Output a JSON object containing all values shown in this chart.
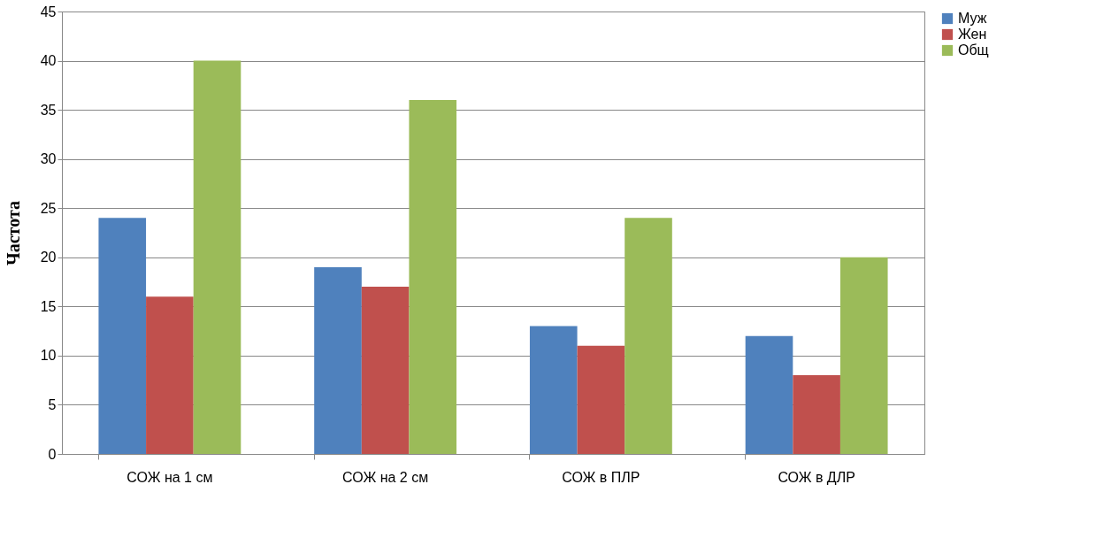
{
  "chart_data": {
    "type": "bar",
    "ylabel": "Частота",
    "categories": [
      "СОЖ на 1 см",
      "СОЖ на 2 см",
      "СОЖ в ПЛР",
      "СОЖ в ДЛР"
    ],
    "series": [
      {
        "name": "Муж",
        "color": "#4f81bd",
        "values": [
          24,
          19,
          13,
          12
        ]
      },
      {
        "name": "Жен",
        "color": "#c0504d",
        "values": [
          16,
          17,
          11,
          8
        ]
      },
      {
        "name": "Общ",
        "color": "#9bbb59",
        "values": [
          40,
          36,
          24,
          20
        ]
      }
    ],
    "ylim": [
      0,
      45
    ],
    "yticks": [
      0,
      5,
      10,
      15,
      20,
      25,
      30,
      35,
      40,
      45
    ],
    "grid": "y",
    "legend": "right"
  }
}
